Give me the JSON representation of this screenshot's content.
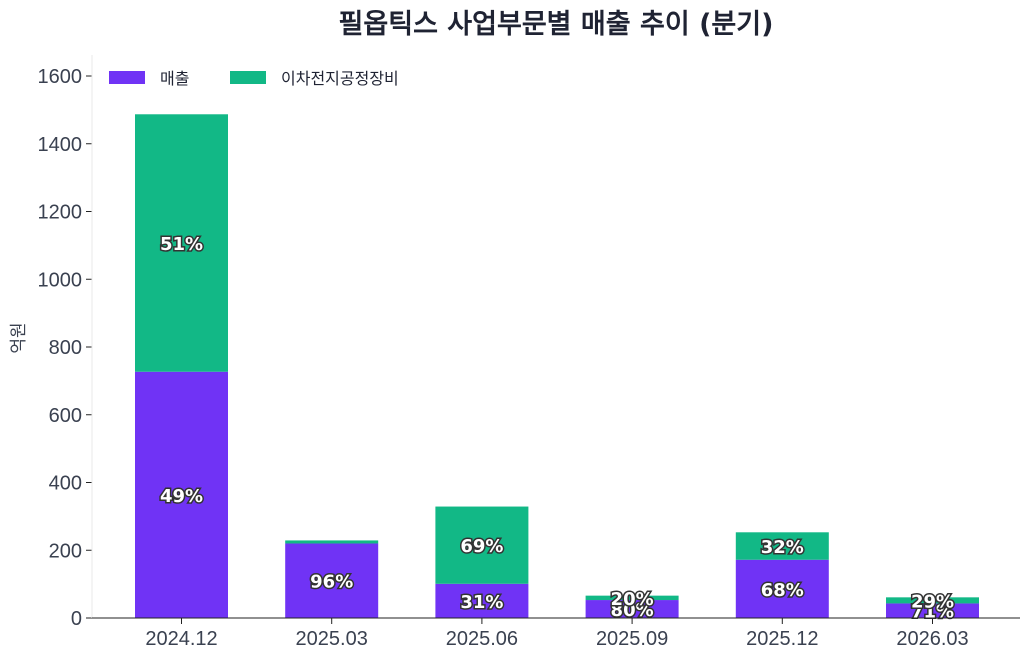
{
  "chart_data": {
    "type": "bar",
    "stacked": true,
    "title": "필옵틱스 사업부문별 매출 추이 (분기)",
    "xlabel": "",
    "ylabel": "억원",
    "ylim": [
      0,
      1660
    ],
    "yticks": [
      0,
      200,
      400,
      600,
      800,
      1000,
      1200,
      1400,
      1600
    ],
    "categories": [
      "2024.12",
      "2025.03",
      "2025.06",
      "2025.09",
      "2025.12",
      "2026.03"
    ],
    "series": [
      {
        "name": "매출",
        "color": "#7033f5",
        "values": [
          727,
          220,
          101,
          53,
          172,
          43
        ],
        "labels": [
          "49%",
          "96%",
          "31%",
          "80%",
          "68%",
          "71%"
        ]
      },
      {
        "name": "이차전지공정장비",
        "color": "#12b886",
        "values": [
          760,
          9,
          228,
          13,
          81,
          18
        ],
        "labels": [
          "51%",
          "",
          "69%",
          "20%",
          "32%",
          "29%"
        ]
      }
    ],
    "legend_position": "top-left",
    "grid": false
  }
}
